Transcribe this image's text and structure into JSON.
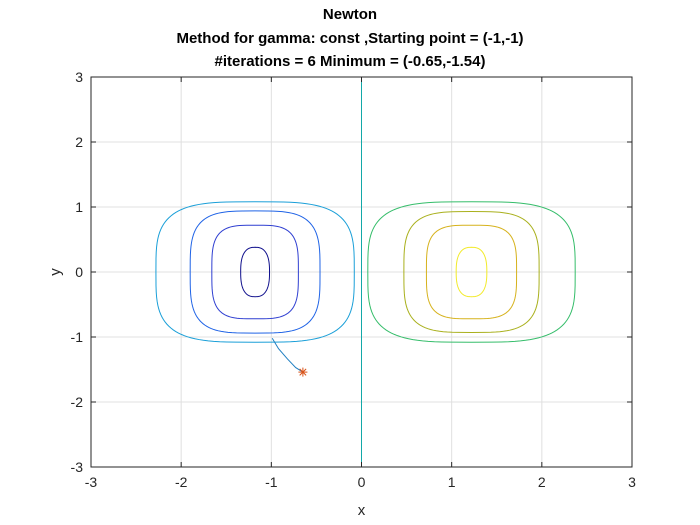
{
  "chart_data": {
    "type": "line",
    "title_lines": [
      "Newton",
      "Method for gamma: const ,Starting point = (-1,-1)",
      "#iterations = 6 Minimum = (-0.65,-1.54)"
    ],
    "xlabel": "x",
    "ylabel": "y",
    "xlim": [
      -3,
      3
    ],
    "ylim": [
      -3,
      3
    ],
    "xticks": [
      -3,
      -2,
      -1,
      0,
      1,
      2,
      3
    ],
    "yticks": [
      -3,
      -2,
      -1,
      0,
      1,
      2,
      3
    ],
    "x_tick_labels": [
      "-3",
      "-2",
      "-1",
      "0",
      "1",
      "2",
      "3"
    ],
    "y_tick_labels": [
      "-3",
      "-2",
      "-1",
      "0",
      "1",
      "2",
      "3"
    ],
    "grid": true,
    "contours": [
      {
        "cx": -1.18,
        "cy": 0,
        "rx": 0.16,
        "ry": 0.38,
        "color": "#0f0f8c"
      },
      {
        "cx": -1.18,
        "cy": 0,
        "rx": 0.48,
        "ry": 0.72,
        "color": "#2f3fd1"
      },
      {
        "cx": -1.18,
        "cy": 0,
        "rx": 0.72,
        "ry": 0.94,
        "color": "#1f63e6"
      },
      {
        "cx": -1.18,
        "cy": 0,
        "rx": 1.1,
        "ry": 1.08,
        "color": "#1a9fd8"
      },
      {
        "cx": 1.22,
        "cy": 0,
        "rx": 1.15,
        "ry": 1.08,
        "color": "#35bd6a"
      },
      {
        "cx": 1.22,
        "cy": 0,
        "rx": 0.75,
        "ry": 0.93,
        "color": "#a9b01c"
      },
      {
        "cx": 1.22,
        "cy": 0,
        "rx": 0.5,
        "ry": 0.72,
        "color": "#d6b21c"
      },
      {
        "cx": 1.22,
        "cy": 0,
        "rx": 0.17,
        "ry": 0.38,
        "color": "#f2ea2a"
      }
    ],
    "vertical_line": {
      "x": 0,
      "color": "#13a8a8"
    },
    "path": {
      "x": [
        -0.99,
        -0.92,
        -0.82,
        -0.73,
        -0.65
      ],
      "y": [
        -1.02,
        -1.18,
        -1.34,
        -1.47,
        -1.54
      ],
      "color": "#1f7fc2"
    },
    "minimum_marker": {
      "x": -0.65,
      "y": -1.54,
      "color": "#d95319"
    }
  }
}
